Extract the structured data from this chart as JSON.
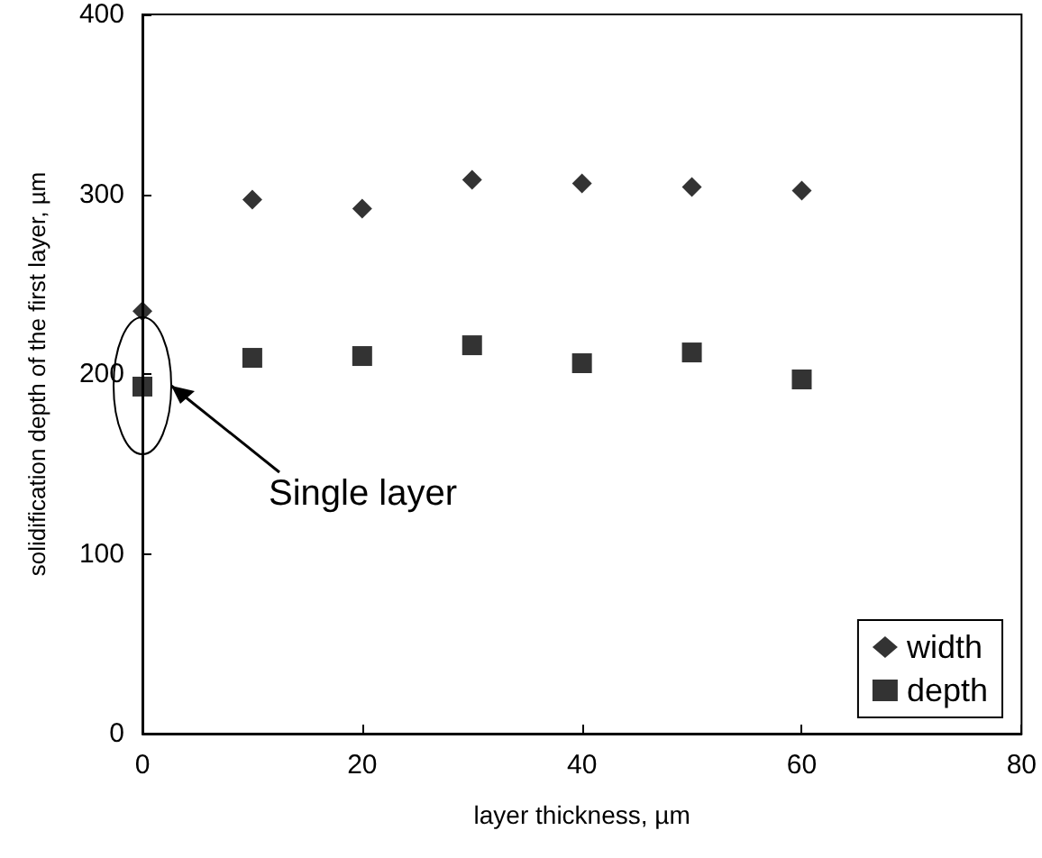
{
  "chart_data": {
    "type": "scatter",
    "xlabel": "layer thickness, µm",
    "ylabel": "solidification depth of the first layer, µm",
    "xlim": [
      0,
      80
    ],
    "xticks": [
      0,
      20,
      40,
      60,
      80
    ],
    "ylim": [
      0,
      400
    ],
    "yticks": [
      0,
      100,
      200,
      300,
      400
    ],
    "grid": false,
    "legend": "bottom right",
    "series": [
      {
        "name": "width",
        "color": "#000000",
        "marker": "diamond",
        "x": [
          0,
          10,
          20,
          30,
          40,
          50,
          60
        ],
        "values": [
          235,
          297,
          292,
          308,
          306,
          304,
          302
        ]
      },
      {
        "name": "depth",
        "color": "#000000",
        "marker": "square",
        "x": [
          0,
          10,
          20,
          30,
          40,
          50,
          60
        ],
        "values": [
          193,
          209,
          210,
          216,
          206,
          212,
          197
        ]
      }
    ],
    "annotations": [
      "Single layer"
    ]
  }
}
